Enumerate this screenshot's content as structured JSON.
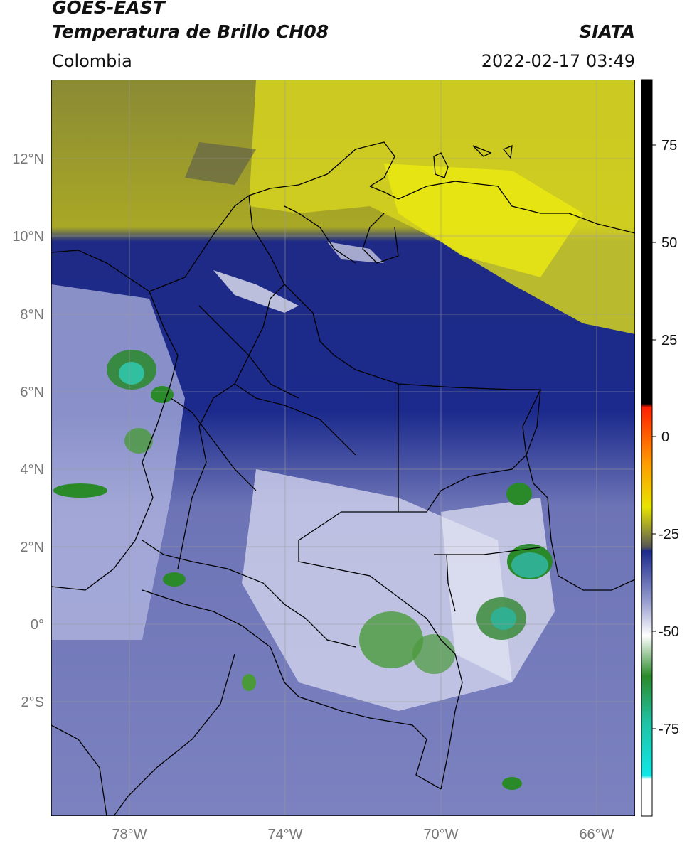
{
  "header": {
    "satellite": "GOES-EAST",
    "product": "Temperatura de Brillo CH08",
    "region": "Colombia",
    "agency": "SIATA",
    "datetime": "2022-02-17 03:49"
  },
  "map": {
    "lat_ticks": [
      "12°N",
      "10°N",
      "8°N",
      "6°N",
      "4°N",
      "2°N",
      "0°",
      "2°S"
    ],
    "lon_ticks": [
      "78°W",
      "74°W",
      "70°W",
      "66°W"
    ]
  },
  "colorbar": {
    "ticks": [
      "75",
      "50",
      "25",
      "0",
      "-25",
      "-50",
      "-75"
    ],
    "colors": {
      "warm_max": "#000000",
      "hot": "#ff2000",
      "orange": "#ff9a00",
      "yellow": "#e8e400",
      "olive": "#9a9a30",
      "gray": "#555555",
      "navy": "#1b2a8c",
      "lavender": "#9aa0d0",
      "white": "#ffffff",
      "green": "#2a8a2a",
      "teal": "#20c0a0",
      "cyan": "#10e8e8"
    }
  }
}
